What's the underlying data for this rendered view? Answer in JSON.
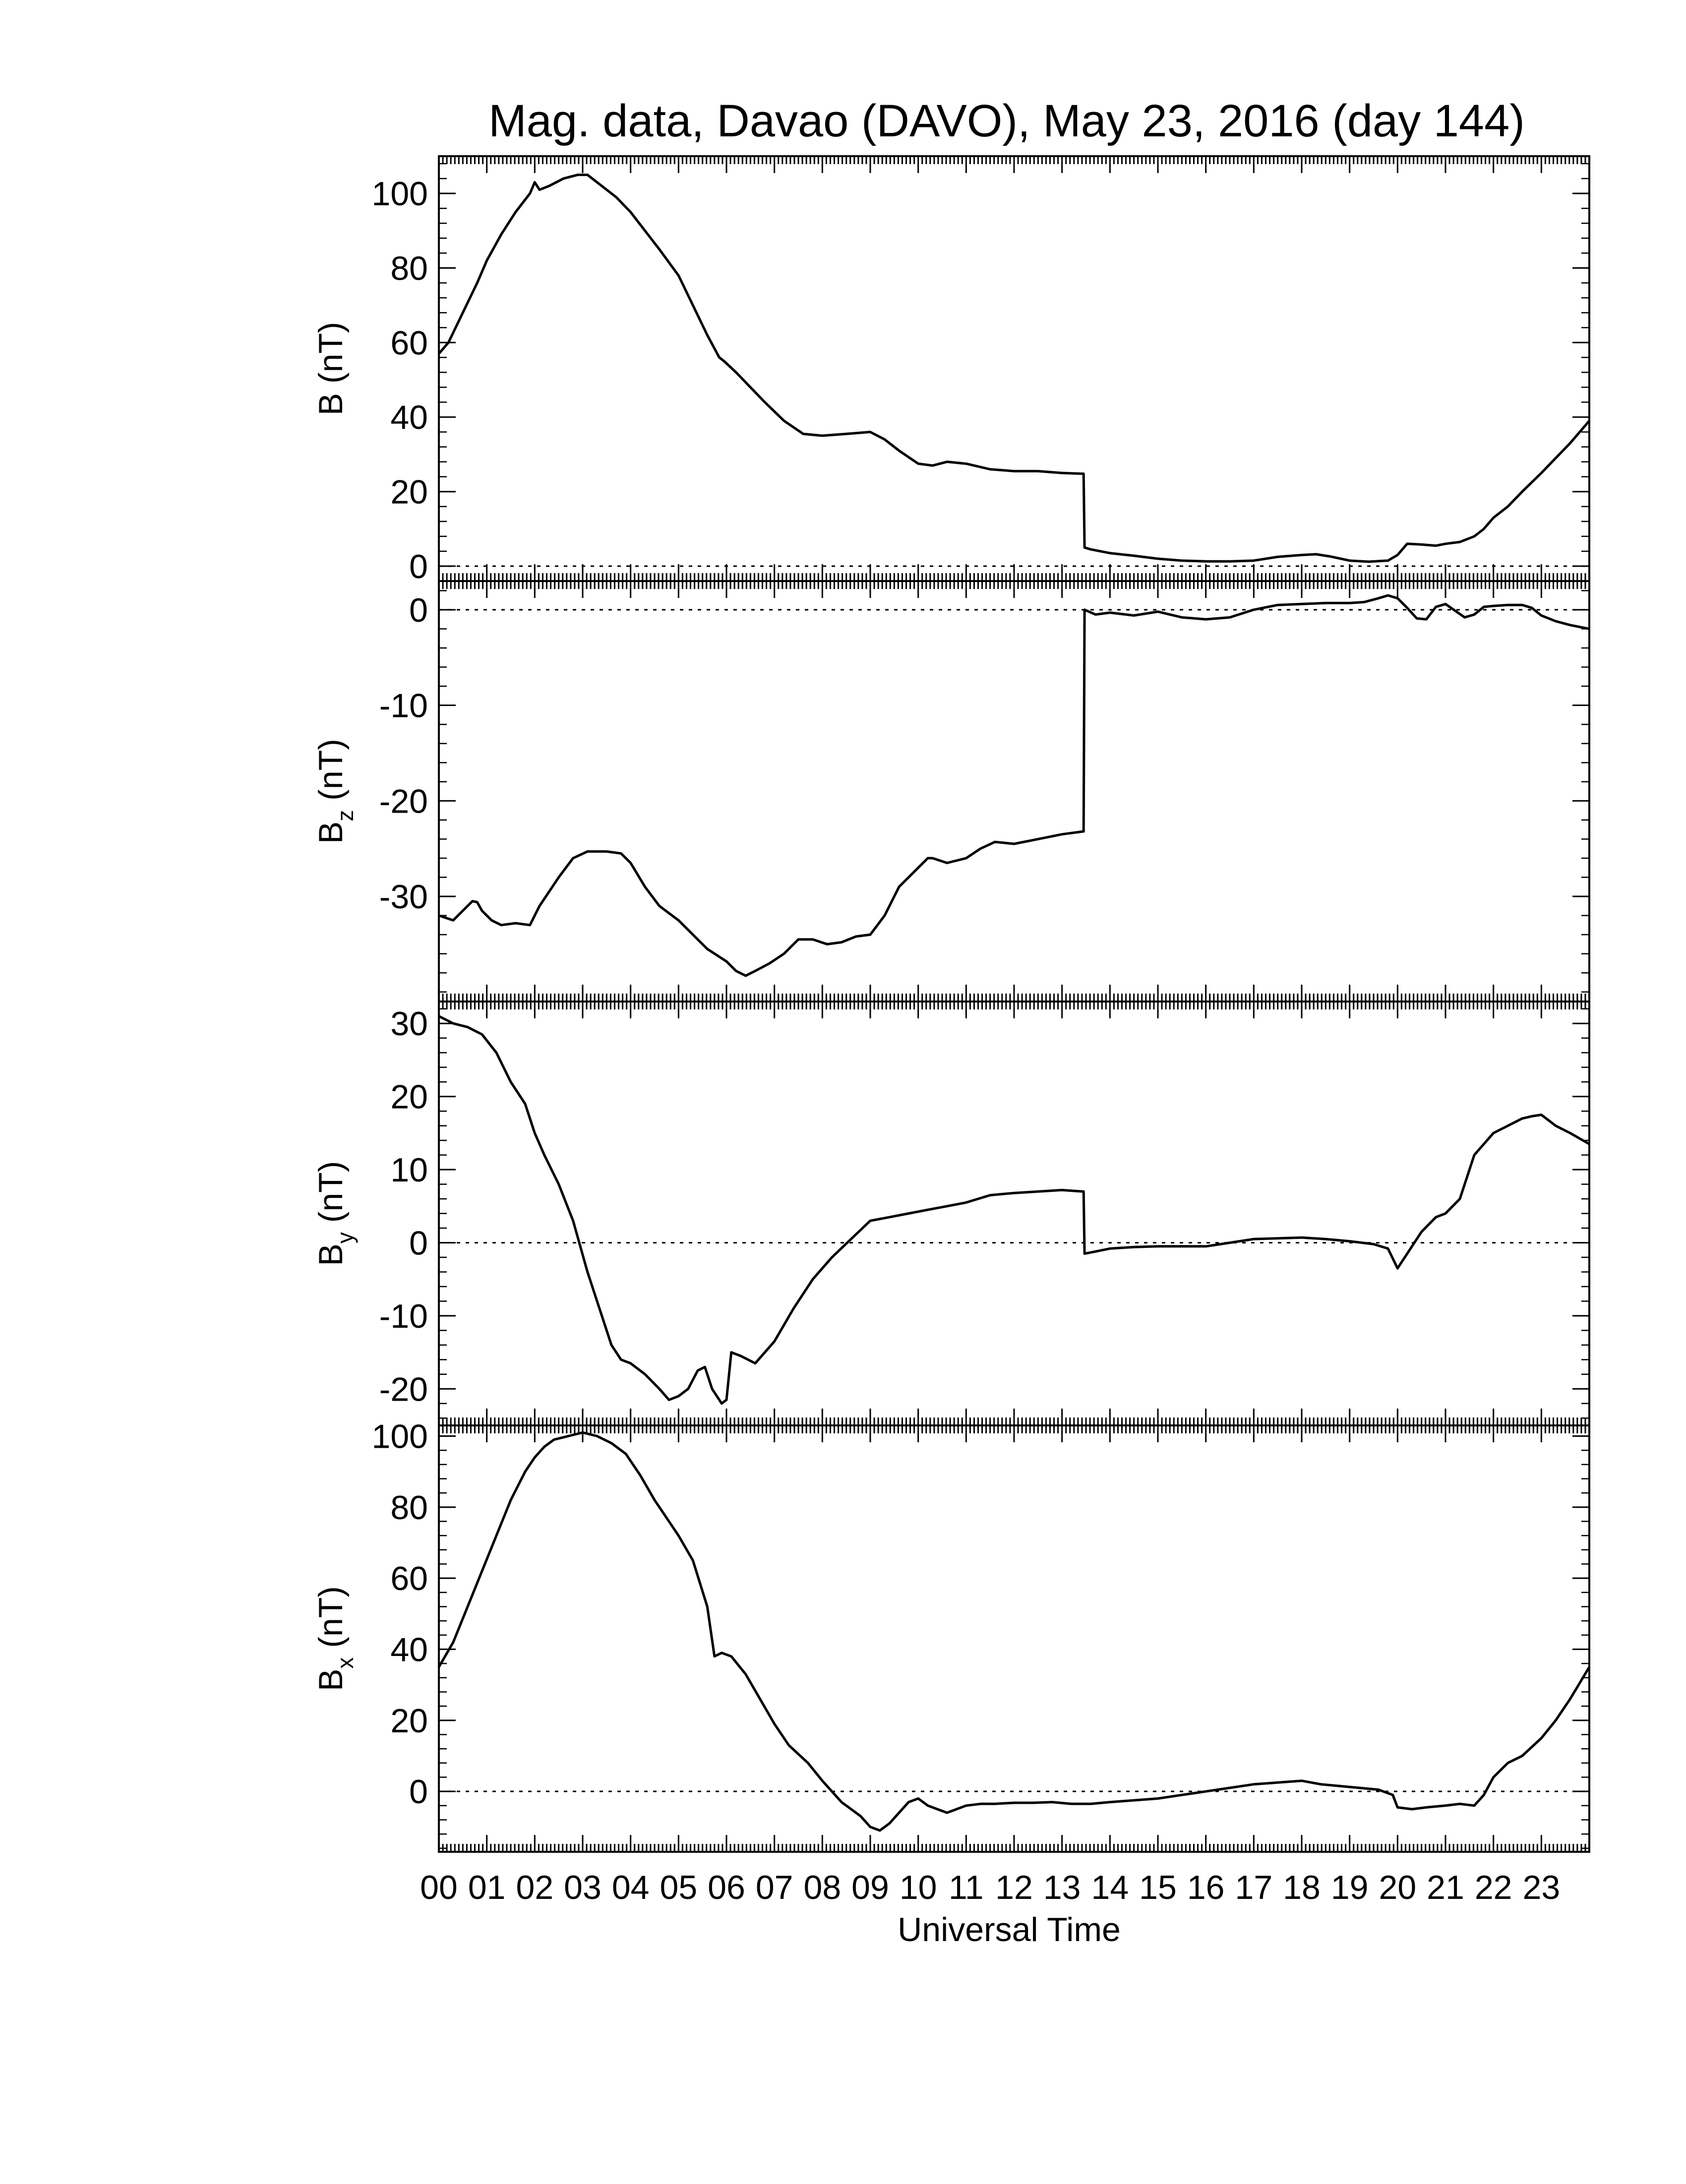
{
  "chart_data": {
    "title": "Mag. data, Davao (DAVO), May 23, 2016 (day 144)",
    "xlabel": "Universal Time",
    "x_unit": "hours UT",
    "x_ticks": [
      "00",
      "01",
      "02",
      "03",
      "04",
      "05",
      "06",
      "07",
      "08",
      "09",
      "10",
      "11",
      "12",
      "13",
      "14",
      "15",
      "16",
      "17",
      "18",
      "19",
      "20",
      "21",
      "22",
      "23"
    ],
    "xlim": [
      0,
      24
    ],
    "colors": {
      "line": "#000000",
      "zero_line": "#000000",
      "frame": "#000000"
    },
    "panels": [
      {
        "type": "line",
        "label_main": "B",
        "label_sub": "",
        "label_unit": "(nT)",
        "ylim": [
          -4,
          110
        ],
        "yticks": [
          0,
          20,
          40,
          60,
          80,
          100
        ],
        "zero_line": true,
        "x": [
          0,
          0.2,
          0.5,
          0.8,
          1.0,
          1.3,
          1.6,
          1.9,
          2.0,
          2.1,
          2.3,
          2.6,
          2.9,
          3.1,
          3.3,
          3.5,
          3.7,
          4.0,
          4.3,
          4.6,
          5.0,
          5.3,
          5.6,
          5.85,
          5.95,
          6.2,
          6.5,
          6.8,
          7.2,
          7.6,
          8.0,
          8.5,
          9.0,
          9.3,
          9.6,
          10.0,
          10.3,
          10.6,
          11.0,
          11.5,
          12.0,
          12.5,
          13.0,
          13.45,
          13.47,
          13.6,
          14.0,
          14.5,
          15.0,
          15.5,
          16.0,
          16.5,
          17.0,
          17.5,
          18.0,
          18.3,
          18.6,
          19.0,
          19.4,
          19.8,
          20.0,
          20.2,
          20.5,
          20.8,
          21.0,
          21.3,
          21.6,
          21.8,
          22.0,
          22.3,
          22.6,
          23.0,
          23.3,
          23.6,
          24.0
        ],
        "y": [
          57,
          60,
          68,
          76,
          82,
          89,
          95,
          100,
          103,
          101,
          102,
          104,
          105,
          105,
          103,
          101,
          99,
          95,
          90,
          85,
          78,
          70,
          62,
          56,
          55,
          52,
          48,
          44,
          39,
          35.5,
          35,
          35.5,
          36,
          34,
          31,
          27.5,
          27,
          28,
          27.5,
          26,
          25.5,
          25.5,
          25,
          24.8,
          5,
          4.5,
          3.5,
          2.8,
          2,
          1.5,
          1.3,
          1.3,
          1.5,
          2.5,
          3,
          3.2,
          2.6,
          1.5,
          1.2,
          1.5,
          3,
          6,
          5.8,
          5.5,
          6,
          6.5,
          8,
          10,
          13,
          16,
          20,
          25,
          29,
          33,
          39
        ]
      },
      {
        "type": "line",
        "label_main": "B",
        "label_sub": "z",
        "label_unit": "(nT)",
        "ylim": [
          -41,
          3
        ],
        "yticks": [
          0,
          -10,
          -20,
          -30
        ],
        "zero_line": true,
        "x": [
          0,
          0.3,
          0.5,
          0.7,
          0.8,
          0.9,
          1.1,
          1.3,
          1.6,
          1.9,
          2.1,
          2.5,
          2.8,
          3.1,
          3.5,
          3.8,
          4.0,
          4.3,
          4.6,
          5.0,
          5.3,
          5.6,
          6.0,
          6.2,
          6.4,
          6.6,
          6.9,
          7.2,
          7.5,
          7.8,
          8.1,
          8.4,
          8.7,
          9.0,
          9.3,
          9.6,
          9.9,
          10.2,
          10.3,
          10.6,
          11.0,
          11.3,
          11.6,
          12.0,
          12.5,
          13.0,
          13.45,
          13.47,
          13.7,
          14.0,
          14.5,
          15.0,
          15.5,
          16.0,
          16.5,
          17.0,
          17.5,
          18.0,
          18.5,
          19.0,
          19.3,
          19.6,
          19.8,
          20.0,
          20.2,
          20.4,
          20.6,
          20.8,
          21.0,
          21.2,
          21.4,
          21.6,
          21.8,
          22.0,
          22.3,
          22.6,
          22.8,
          23.0,
          23.3,
          23.6,
          24.0
        ],
        "y": [
          -32,
          -32.5,
          -31.5,
          -30.5,
          -30.6,
          -31.5,
          -32.5,
          -33,
          -32.8,
          -33,
          -31,
          -28,
          -26,
          -25.3,
          -25.3,
          -25.5,
          -26.5,
          -29,
          -31,
          -32.5,
          -34,
          -35.5,
          -36.8,
          -37.8,
          -38.3,
          -37.8,
          -37,
          -36,
          -34.5,
          -34.5,
          -35,
          -34.8,
          -34.2,
          -34,
          -32,
          -29,
          -27.5,
          -26,
          -26,
          -26.5,
          -26,
          -25,
          -24.3,
          -24.5,
          -24,
          -23.5,
          -23.2,
          0,
          -0.5,
          -0.3,
          -0.6,
          -0.2,
          -0.8,
          -1.0,
          -0.8,
          0,
          0.5,
          0.6,
          0.7,
          0.7,
          0.8,
          1.2,
          1.5,
          1.2,
          0.2,
          -0.9,
          -1,
          0.3,
          0.6,
          -0.1,
          -0.8,
          -0.5,
          0.3,
          0.4,
          0.5,
          0.5,
          0.2,
          -0.6,
          -1.2,
          -1.6,
          -2
        ]
      },
      {
        "type": "line",
        "label_main": "B",
        "label_sub": "y",
        "label_unit": "(nT)",
        "ylim": [
          -25,
          33
        ],
        "yticks": [
          30,
          20,
          10,
          0,
          -10,
          -20
        ],
        "zero_line": true,
        "x": [
          0,
          0.3,
          0.6,
          0.9,
          1.2,
          1.5,
          1.8,
          2.0,
          2.2,
          2.5,
          2.8,
          3.1,
          3.4,
          3.6,
          3.8,
          4.0,
          4.3,
          4.6,
          4.8,
          5.0,
          5.2,
          5.4,
          5.55,
          5.7,
          5.9,
          6.0,
          6.1,
          6.3,
          6.6,
          7.0,
          7.4,
          7.8,
          8.2,
          8.6,
          9.0,
          9.4,
          9.8,
          10.2,
          10.6,
          11.0,
          11.5,
          12.0,
          12.5,
          13.0,
          13.45,
          13.47,
          13.7,
          14.0,
          14.5,
          15.0,
          15.5,
          16.0,
          16.5,
          17.0,
          17.5,
          18.0,
          18.5,
          19.0,
          19.5,
          19.8,
          20.0,
          20.2,
          20.5,
          20.8,
          21.0,
          21.3,
          21.6,
          21.8,
          22.0,
          22.3,
          22.6,
          22.8,
          23.0,
          23.3,
          23.6,
          24.0
        ],
        "y": [
          31,
          30,
          29.5,
          28.5,
          26,
          22,
          19,
          15,
          12,
          8,
          3,
          -4,
          -10,
          -14,
          -16,
          -16.5,
          -18,
          -20,
          -21.5,
          -21,
          -20,
          -17.5,
          -17,
          -20,
          -22,
          -21.5,
          -15,
          -15.5,
          -16.5,
          -13.5,
          -9,
          -5,
          -2,
          0.5,
          3,
          3.5,
          4,
          4.5,
          5,
          5.5,
          6.5,
          6.8,
          7,
          7.2,
          7,
          -1.5,
          -1.2,
          -0.8,
          -0.6,
          -0.5,
          -0.5,
          -0.5,
          0,
          0.5,
          0.6,
          0.7,
          0.5,
          0.2,
          -0.2,
          -0.8,
          -3.5,
          -1.5,
          1.5,
          3.5,
          4,
          6,
          12,
          13.5,
          15,
          16,
          17,
          17.3,
          17.5,
          16,
          15,
          13.5
        ]
      },
      {
        "type": "line",
        "label_main": "B",
        "label_sub": "x",
        "label_unit": "(nT)",
        "ylim": [
          -17,
          103
        ],
        "yticks": [
          0,
          20,
          40,
          60,
          80,
          100
        ],
        "zero_line": true,
        "x": [
          0,
          0.3,
          0.6,
          0.9,
          1.2,
          1.5,
          1.8,
          2.0,
          2.2,
          2.4,
          2.7,
          3.0,
          3.3,
          3.6,
          3.9,
          4.2,
          4.5,
          4.8,
          5.0,
          5.3,
          5.6,
          5.75,
          5.9,
          6.1,
          6.4,
          6.7,
          7.0,
          7.3,
          7.7,
          8.0,
          8.4,
          8.8,
          9.0,
          9.2,
          9.4,
          9.6,
          9.8,
          10.0,
          10.2,
          10.4,
          10.6,
          10.8,
          11.0,
          11.3,
          11.6,
          12.0,
          12.4,
          12.8,
          13.2,
          13.6,
          14.0,
          14.5,
          15.0,
          15.5,
          16.0,
          16.5,
          17.0,
          17.5,
          18.0,
          18.4,
          18.8,
          19.2,
          19.6,
          19.9,
          20.0,
          20.3,
          20.6,
          21.0,
          21.3,
          21.6,
          21.8,
          22.0,
          22.3,
          22.6,
          23.0,
          23.3,
          23.6,
          24.0
        ],
        "y": [
          35,
          42,
          52,
          62,
          72,
          82,
          90,
          94,
          97,
          99,
          100,
          101,
          100,
          98,
          95,
          89,
          82,
          76,
          72,
          65,
          52,
          38,
          39,
          38,
          33,
          26,
          19,
          13,
          8,
          3,
          -3,
          -7,
          -10,
          -11,
          -9,
          -6,
          -3,
          -2,
          -4,
          -5,
          -6,
          -5,
          -4,
          -3.5,
          -3.5,
          -3.2,
          -3.2,
          -3,
          -3.5,
          -3.5,
          -3,
          -2.5,
          -2,
          -1,
          0,
          1,
          2,
          2.5,
          3,
          2,
          1.5,
          1,
          0.5,
          -1,
          -4.5,
          -5,
          -4.5,
          -4,
          -3.5,
          -4,
          -1,
          4,
          8,
          10,
          15,
          20,
          26,
          35
        ]
      }
    ]
  }
}
